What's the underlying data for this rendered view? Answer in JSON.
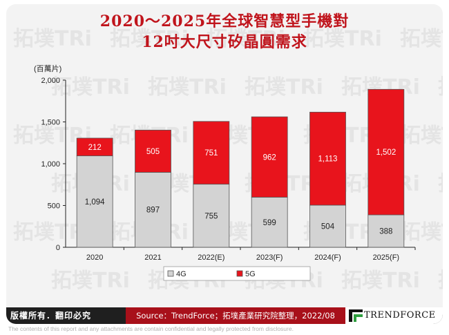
{
  "header": {
    "title_line1": "2020～2025年全球智慧型手機對",
    "title_line2": "12吋大尺寸矽晶圓需求"
  },
  "chart_data": {
    "type": "bar",
    "stacked": true,
    "unit_label": "(百萬片)",
    "categories": [
      "2020",
      "2021",
      "2022(E)",
      "2023(F)",
      "2024(F)",
      "2025(F)"
    ],
    "series": [
      {
        "name": "4G",
        "color": "#d3d3d3",
        "values": [
          1094,
          897,
          755,
          599,
          504,
          388
        ],
        "labels": [
          "1,094",
          "897",
          "755",
          "599",
          "504",
          "388"
        ]
      },
      {
        "name": "5G",
        "color": "#e8141c",
        "values": [
          212,
          505,
          751,
          962,
          1113,
          1502
        ],
        "labels": [
          "212",
          "505",
          "751",
          "962",
          "1,113",
          "1,502"
        ]
      }
    ],
    "ylim": [
      0,
      2000
    ],
    "yticks": [
      0,
      500,
      1000,
      1500,
      2000
    ],
    "ytick_labels": [
      "0",
      "500",
      "1,000",
      "1,500",
      "2,000"
    ],
    "grid": false,
    "legend_position": "bottom"
  },
  "watermark": {
    "text": "拓墣TRi"
  },
  "footer": {
    "rights": "版權所有．翻印必究",
    "source": "Source：TrendForce；拓墣產業研究院整理，2022/08",
    "brand": "TRENDFORCE",
    "disclaimer": "The contents of this report and any attachments are contain confidential and legally protected from disclosure."
  }
}
